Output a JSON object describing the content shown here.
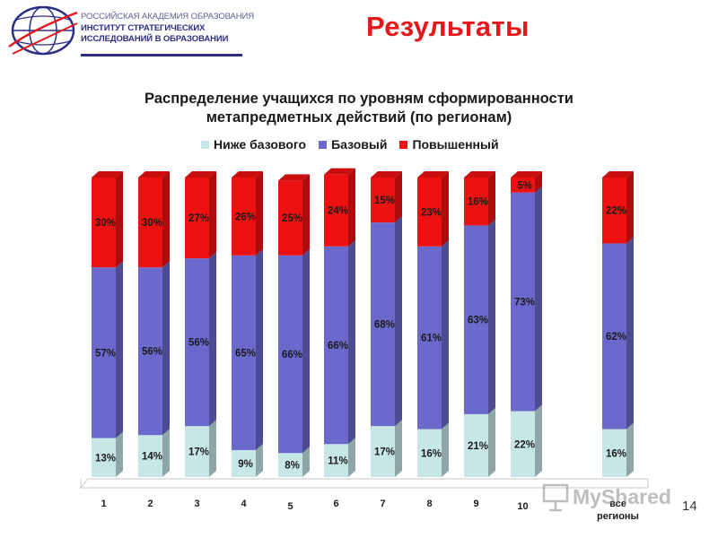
{
  "header": {
    "logo_lines": [
      "РОССИЙСКАЯ АКАДЕМИЯ ОБРАЗОВАНИЯ",
      "ИНСТИТУТ СТРАТЕГИЧЕСКИХ",
      "ИССЛЕДОВАНИЙ В ОБРАЗОВАНИИ"
    ],
    "slide_title": "Результаты"
  },
  "page_number": "14",
  "watermark": "MyShared",
  "colors": {
    "below_base": "#c7e7e6",
    "base": "#6b69cc",
    "advanced": "#ee1111",
    "brand": "#2b2e86",
    "title": "#e5171b"
  },
  "chart_data": {
    "type": "bar",
    "stacked": true,
    "title_lines": [
      "Распределение учащихся по уровням сформированности",
      "метапредметных действий (по регионам)"
    ],
    "categories": [
      "1",
      "2",
      "3",
      "4",
      "5",
      "6",
      "7",
      "8",
      "9",
      "10",
      "все регионы"
    ],
    "series": [
      {
        "name": "Ниже базового",
        "color": "#c7e7e6",
        "values": [
          13,
          14,
          17,
          9,
          8,
          11,
          17,
          16,
          21,
          22,
          16
        ]
      },
      {
        "name": "Базовый",
        "color": "#6b69cc",
        "values": [
          57,
          56,
          56,
          65,
          66,
          66,
          68,
          61,
          63,
          73,
          62
        ]
      },
      {
        "name": "Повышенный",
        "color": "#ee1111",
        "values": [
          30,
          30,
          27,
          26,
          25,
          24,
          15,
          23,
          16,
          5,
          22
        ]
      }
    ],
    "ylim": [
      0,
      100
    ],
    "grid": false,
    "legend_position": "top"
  }
}
